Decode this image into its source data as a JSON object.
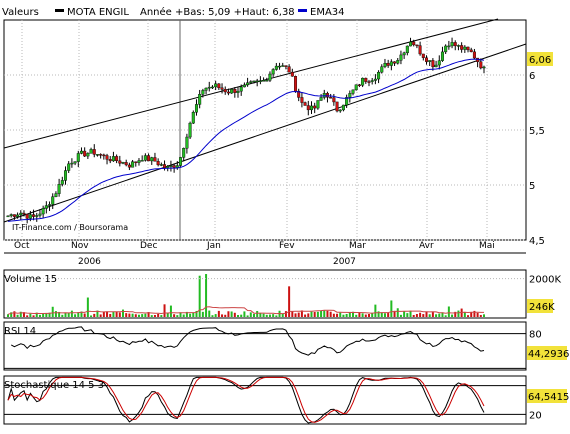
{
  "header": {
    "instrument_label": "Valeurs",
    "instrument": "MOTA ENGIL",
    "stats": "Année +Bas: 5,09 +Haut: 6,38",
    "ema_label": "EMA34",
    "watermark": "IT-Finance.com / Boursorama"
  },
  "colors": {
    "up": "#22bb22",
    "down": "#cc1111",
    "ema": "#0000cc",
    "value_box": "#f2e23a",
    "grid": "#b8b8b8",
    "channel": "#000000",
    "stoch_signal": "#cc0000"
  },
  "chart_data": [
    {
      "type": "candlestick",
      "name": "price",
      "x_labels": [
        "Oct",
        "Nov",
        "Dec",
        "Jan",
        "Fev",
        "Mar",
        "Avr",
        "Mai"
      ],
      "year_labels": [
        "2006",
        "2007"
      ],
      "y_ticks": [
        "6",
        "5,5",
        "5",
        "4,5"
      ],
      "ylim": [
        4.5,
        6.5
      ],
      "last_value": "6,06",
      "ema_label": "EMA34",
      "weekly_close": [
        4.72,
        4.75,
        4.7,
        4.78,
        4.95,
        5.2,
        5.28,
        5.3,
        5.25,
        5.22,
        5.18,
        5.25,
        5.22,
        5.15,
        5.2,
        5.6,
        5.88,
        5.9,
        5.85,
        5.87,
        5.92,
        5.95,
        6.1,
        6.05,
        5.75,
        5.68,
        5.85,
        5.68,
        5.82,
        5.95,
        5.98,
        6.1,
        6.15,
        6.32,
        6.18,
        6.08,
        6.3,
        6.25,
        6.2,
        6.05
      ]
    },
    {
      "type": "bar",
      "name": "Volume 15",
      "title": "Volume 15",
      "y_ticks": [
        "2000K"
      ],
      "last_value": "246K"
    },
    {
      "type": "line",
      "name": "RSI 14",
      "title": "RSI 14",
      "y_ticks": [
        "80",
        "20"
      ],
      "last_value": "44,2936"
    },
    {
      "type": "line",
      "name": "Stochastique 14 5 3",
      "title": "Stochastique 14 5 3",
      "y_ticks": [
        "80",
        "20"
      ],
      "last_value": "64,5415"
    }
  ]
}
